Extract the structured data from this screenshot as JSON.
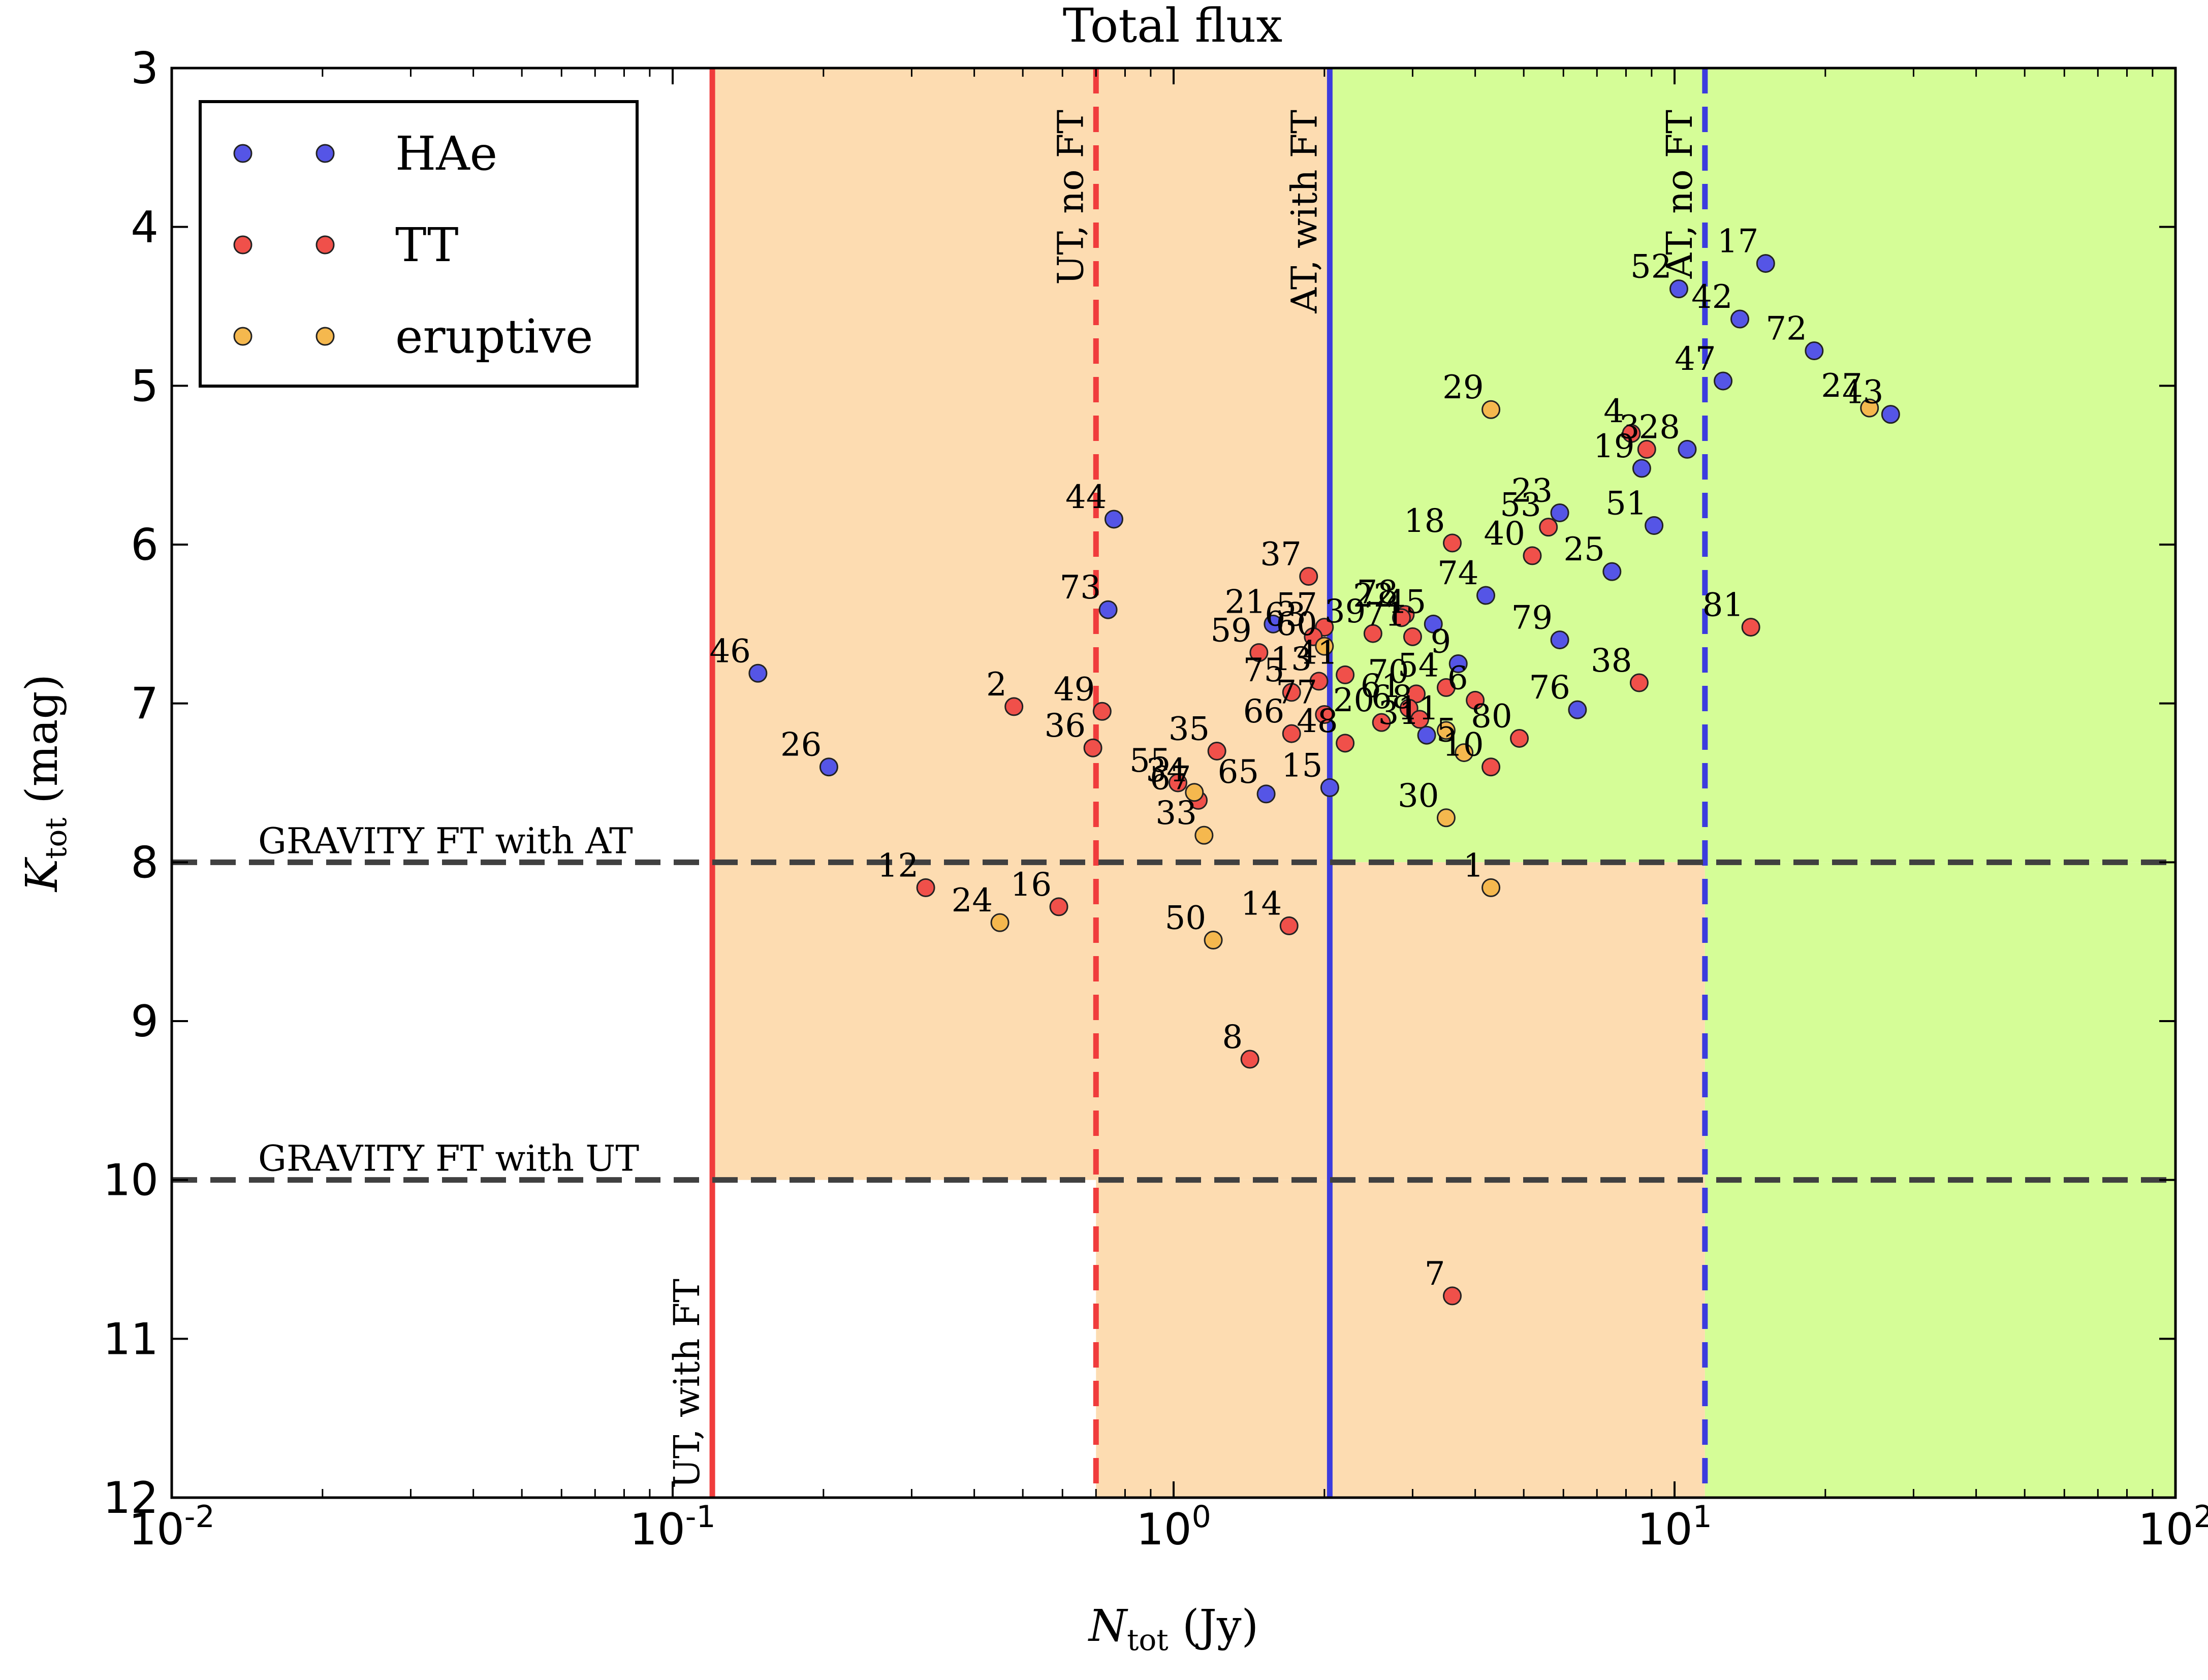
{
  "chart_data": {
    "type": "scatter",
    "title": "Total flux",
    "xlabel": "N_tot (Jy)",
    "ylabel": "K_tot (mag)",
    "x_scale": "log",
    "xlim": [
      0.01,
      100
    ],
    "ylim": [
      12,
      3
    ],
    "y_inverted": true,
    "x_ticks": [
      {
        "value": 0.01,
        "base": "10",
        "exp": "-2"
      },
      {
        "value": 0.1,
        "base": "10",
        "exp": "-1"
      },
      {
        "value": 1,
        "base": "10",
        "exp": "0"
      },
      {
        "value": 10,
        "base": "10",
        "exp": "1"
      },
      {
        "value": 100,
        "base": "10",
        "exp": "2"
      }
    ],
    "y_ticks": [
      3,
      4,
      5,
      6,
      7,
      8,
      9,
      10,
      11,
      12
    ],
    "grid": false,
    "legend_position": "top-left",
    "colors": {
      "HAe": "#5555e6",
      "TT": "#f0504a",
      "eruptive": "#f5b84e",
      "orange_region": "#fddcb1",
      "green_region": "#d5fd97",
      "ut_line": "#f03c3c",
      "at_line": "#3c3cde",
      "gravity_line": "#404040"
    },
    "regions": [
      {
        "color": "orange",
        "x": [
          0.12,
          2.05
        ],
        "y": [
          3,
          10
        ]
      },
      {
        "color": "orange",
        "x": [
          0.7,
          2.05
        ],
        "y": [
          10,
          12
        ]
      },
      {
        "color": "green",
        "x": [
          2.05,
          100
        ],
        "y": [
          3,
          8
        ]
      },
      {
        "color": "orange",
        "x": [
          2.05,
          11.5
        ],
        "y": [
          8,
          12
        ]
      },
      {
        "color": "green",
        "x": [
          11.5,
          100
        ],
        "y": [
          8,
          12
        ]
      }
    ],
    "vertical_lines": [
      {
        "x": 0.12,
        "color": "#f03c3c",
        "style": "solid",
        "label": "UT, with FT",
        "label_anchor": "bottom"
      },
      {
        "x": 0.7,
        "color": "#f03c3c",
        "style": "dashed",
        "label": "UT, no FT",
        "label_anchor": "top"
      },
      {
        "x": 2.05,
        "color": "#3c3cde",
        "style": "solid",
        "label": "AT, with FT",
        "label_anchor": "top"
      },
      {
        "x": 11.5,
        "color": "#3c3cde",
        "style": "dashed",
        "label": "AT, no FT",
        "label_anchor": "top"
      }
    ],
    "horizontal_lines": [
      {
        "y": 8,
        "label": "GRAVITY FT with AT"
      },
      {
        "y": 10,
        "label": "GRAVITY FT with UT"
      }
    ],
    "series": [
      {
        "name": "HAe",
        "points": [
          {
            "id": "17",
            "x": 15.2,
            "y": 4.23
          },
          {
            "id": "52",
            "x": 10.2,
            "y": 4.39
          },
          {
            "id": "42",
            "x": 13.5,
            "y": 4.58
          },
          {
            "id": "72",
            "x": 19.0,
            "y": 4.78
          },
          {
            "id": "47",
            "x": 12.5,
            "y": 4.97
          },
          {
            "id": "43",
            "x": 27.0,
            "y": 5.18
          },
          {
            "id": "28",
            "x": 10.6,
            "y": 5.4
          },
          {
            "id": "19",
            "x": 8.6,
            "y": 5.52
          },
          {
            "id": "23",
            "x": 5.9,
            "y": 5.8
          },
          {
            "id": "51",
            "x": 9.1,
            "y": 5.88
          },
          {
            "id": "44",
            "x": 0.76,
            "y": 5.84
          },
          {
            "id": "25",
            "x": 7.5,
            "y": 6.17
          },
          {
            "id": "74",
            "x": 4.2,
            "y": 6.32
          },
          {
            "id": "73",
            "x": 0.74,
            "y": 6.41
          },
          {
            "id": "79",
            "x": 5.9,
            "y": 6.6
          },
          {
            "id": "76",
            "x": 6.4,
            "y": 7.04
          },
          {
            "id": "21",
            "x": 1.58,
            "y": 6.5
          },
          {
            "id": "46",
            "x": 0.148,
            "y": 6.81
          },
          {
            "id": "26",
            "x": 0.205,
            "y": 7.4
          },
          {
            "id": "65",
            "x": 1.53,
            "y": 7.57
          },
          {
            "id": "15",
            "x": 2.05,
            "y": 7.53
          },
          {
            "id": "45",
            "x": 3.3,
            "y": 6.5
          },
          {
            "id": "9",
            "x": 3.7,
            "y": 6.75
          },
          {
            "id": "31",
            "x": 3.2,
            "y": 7.2
          }
        ]
      },
      {
        "name": "TT",
        "points": [
          {
            "id": "4",
            "x": 8.2,
            "y": 5.3
          },
          {
            "id": "3",
            "x": 8.8,
            "y": 5.4
          },
          {
            "id": "53",
            "x": 5.6,
            "y": 5.89
          },
          {
            "id": "18",
            "x": 3.6,
            "y": 5.99
          },
          {
            "id": "40",
            "x": 5.2,
            "y": 6.07
          },
          {
            "id": "37",
            "x": 1.86,
            "y": 6.2
          },
          {
            "id": "81",
            "x": 14.2,
            "y": 6.52
          },
          {
            "id": "38",
            "x": 8.5,
            "y": 6.87
          },
          {
            "id": "57",
            "x": 2.0,
            "y": 6.52
          },
          {
            "id": "63",
            "x": 1.9,
            "y": 6.58
          },
          {
            "id": "59",
            "x": 1.48,
            "y": 6.68
          },
          {
            "id": "39",
            "x": 2.5,
            "y": 6.56
          },
          {
            "id": "78",
            "x": 2.9,
            "y": 6.44
          },
          {
            "id": "71",
            "x": 3.0,
            "y": 6.58
          },
          {
            "id": "22",
            "x": 2.85,
            "y": 6.46
          },
          {
            "id": "13",
            "x": 1.95,
            "y": 6.86
          },
          {
            "id": "41",
            "x": 2.2,
            "y": 6.82
          },
          {
            "id": "2",
            "x": 0.48,
            "y": 7.02
          },
          {
            "id": "49",
            "x": 0.72,
            "y": 7.05
          },
          {
            "id": "75",
            "x": 1.72,
            "y": 6.93
          },
          {
            "id": "54",
            "x": 3.5,
            "y": 6.9
          },
          {
            "id": "6",
            "x": 4.0,
            "y": 6.98
          },
          {
            "id": "70",
            "x": 3.05,
            "y": 6.94
          },
          {
            "id": "61",
            "x": 2.95,
            "y": 7.03
          },
          {
            "id": "48",
            "x": 2.2,
            "y": 7.25
          },
          {
            "id": "20",
            "x": 2.6,
            "y": 7.12
          },
          {
            "id": "68",
            "x": 3.1,
            "y": 7.1
          },
          {
            "id": "66",
            "x": 1.72,
            "y": 7.19
          },
          {
            "id": "77",
            "x": 2.0,
            "y": 7.07
          },
          {
            "id": "36",
            "x": 0.69,
            "y": 7.28
          },
          {
            "id": "35",
            "x": 1.22,
            "y": 7.3
          },
          {
            "id": "80",
            "x": 4.9,
            "y": 7.22
          },
          {
            "id": "10",
            "x": 4.3,
            "y": 7.4
          },
          {
            "id": "55",
            "x": 1.02,
            "y": 7.5
          },
          {
            "id": "67",
            "x": 1.12,
            "y": 7.61
          },
          {
            "id": "12",
            "x": 0.32,
            "y": 8.16
          },
          {
            "id": "16",
            "x": 0.59,
            "y": 8.28
          },
          {
            "id": "14",
            "x": 1.7,
            "y": 8.4
          },
          {
            "id": "8",
            "x": 1.42,
            "y": 9.24
          },
          {
            "id": "7",
            "x": 3.6,
            "y": 10.73
          }
        ]
      },
      {
        "name": "eruptive",
        "points": [
          {
            "id": "29",
            "x": 4.3,
            "y": 5.15
          },
          {
            "id": "27",
            "x": 24.5,
            "y": 5.14
          },
          {
            "id": "11",
            "x": 3.5,
            "y": 7.17
          },
          {
            "id": "5",
            "x": 3.8,
            "y": 7.31
          },
          {
            "id": "30",
            "x": 3.5,
            "y": 7.72
          },
          {
            "id": "33",
            "x": 1.15,
            "y": 7.83
          },
          {
            "id": "1",
            "x": 4.3,
            "y": 8.16
          },
          {
            "id": "24",
            "x": 0.45,
            "y": 8.38
          },
          {
            "id": "50",
            "x": 1.2,
            "y": 8.49
          },
          {
            "id": "60",
            "x": 2.0,
            "y": 6.64
          },
          {
            "id": "34",
            "x": 1.1,
            "y": 7.56
          }
        ]
      }
    ]
  }
}
